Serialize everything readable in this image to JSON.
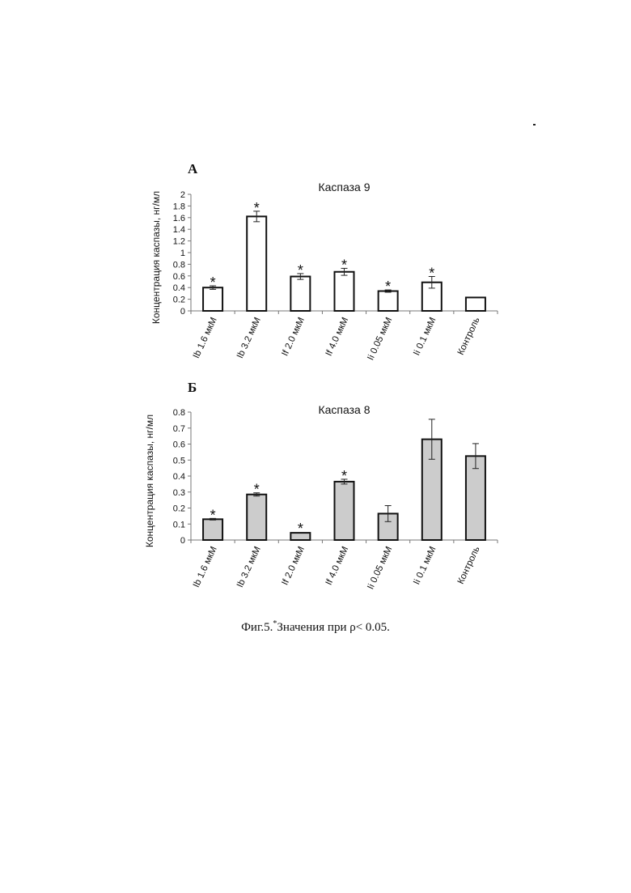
{
  "figure": {
    "caption_prefix": "Фиг.5.",
    "caption_star": "*",
    "caption_text": "Значения при ρ< 0.05."
  },
  "chart_data": [
    {
      "type": "bar",
      "panel_label": "А",
      "title": "Каспаза 9",
      "ylabel": "Концентрация каспазы, нг/мл",
      "xlabel": "",
      "ylim": [
        0,
        2
      ],
      "yticks": [
        0,
        0.2,
        0.4,
        0.6,
        0.8,
        1,
        1.2,
        1.4,
        1.6,
        1.8,
        2
      ],
      "ytick_labels": [
        "0",
        "0.2",
        "0.4",
        "0.6",
        "0.8",
        "1",
        "1.2",
        "1.4",
        "1.6",
        "1.8",
        "2"
      ],
      "categories": [
        "Ib 1.6 мкМ",
        "Ib 3.2 мкМ",
        "If 2.0 мкМ",
        "If 4.0 мкМ",
        "Ii 0.05 мкМ",
        "Ii 0.1 мкМ",
        "Контроль"
      ],
      "values": [
        0.4,
        1.62,
        0.59,
        0.67,
        0.34,
        0.49,
        0.23
      ],
      "errors": [
        0.03,
        0.09,
        0.05,
        0.06,
        0.02,
        0.1,
        0
      ],
      "significant": [
        true,
        true,
        true,
        true,
        true,
        true,
        false
      ],
      "significance_marker": "*",
      "bar_color": "#ffffff",
      "grid": false
    },
    {
      "type": "bar",
      "panel_label": "Б",
      "title": "Каспаза 8",
      "ylabel": "Концентрация каспазы, нг/мл",
      "xlabel": "",
      "ylim": [
        0,
        0.8
      ],
      "yticks": [
        0,
        0.1,
        0.2,
        0.3,
        0.4,
        0.5,
        0.6,
        0.7,
        0.8
      ],
      "ytick_labels": [
        "0",
        "0.1",
        "0.2",
        "0.3",
        "0.4",
        "0.5",
        "0.6",
        "0.7",
        "0.8"
      ],
      "categories": [
        "Ib 1.6 мкМ",
        "Ib 3.2 мкМ",
        "If 2.0 мкМ",
        "If 4.0 мкМ",
        "Ii 0.05 мкМ",
        "Ii 0.1 мкМ",
        "Контроль"
      ],
      "values": [
        0.13,
        0.285,
        0.045,
        0.365,
        0.165,
        0.63,
        0.525
      ],
      "errors": [
        0.005,
        0.01,
        0,
        0.015,
        0.05,
        0.125,
        0.078
      ],
      "significant": [
        true,
        true,
        true,
        true,
        false,
        false,
        false
      ],
      "significance_marker": "*",
      "bar_color": "#cccccc",
      "grid": false
    }
  ]
}
